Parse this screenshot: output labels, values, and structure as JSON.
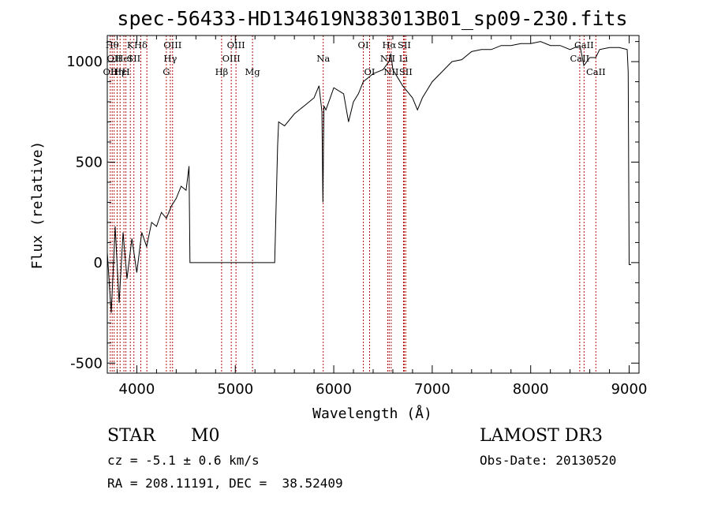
{
  "chart_data": {
    "type": "line",
    "title": "spec-56433-HD134619N383013B01_sp09-230.fits",
    "xlabel": "Wavelength (Å)",
    "ylabel": "Flux (relative)",
    "xlim": [
      3700,
      9100
    ],
    "ylim": [
      -550,
      1130
    ],
    "xticks": [
      4000,
      5000,
      6000,
      7000,
      8000,
      9000
    ],
    "yticks": [
      -500,
      0,
      500,
      1000
    ],
    "grid": false,
    "series": [
      {
        "x": [
          3700,
          3740,
          3780,
          3820,
          3860,
          3900,
          3950,
          4000,
          4050,
          4100,
          4150,
          4200,
          4250,
          4300,
          4350,
          4400,
          4450,
          4500,
          4530,
          4540,
          4600,
          5000,
          5400,
          5430,
          5440,
          5500,
          5600,
          5700,
          5800,
          5850,
          5880,
          5890,
          5900,
          5920,
          5950,
          6000,
          6100,
          6150,
          6200,
          6250,
          6300,
          6400,
          6500,
          6560,
          6580,
          6600,
          6700,
          6800,
          6850,
          6900,
          7000,
          7100,
          7200,
          7300,
          7400,
          7500,
          7600,
          7700,
          7800,
          7900,
          8000,
          8100,
          8200,
          8300,
          8400,
          8500,
          8540,
          8600,
          8660,
          8700,
          8800,
          8900,
          8980,
          8990,
          9000,
          9020
        ],
        "y": [
          50,
          -250,
          180,
          -200,
          150,
          -80,
          120,
          -50,
          150,
          80,
          200,
          180,
          250,
          220,
          280,
          320,
          380,
          360,
          480,
          0,
          0,
          0,
          0,
          580,
          700,
          680,
          740,
          780,
          820,
          880,
          750,
          300,
          780,
          760,
          800,
          870,
          840,
          700,
          800,
          840,
          900,
          940,
          960,
          1000,
          1040,
          960,
          880,
          820,
          760,
          820,
          900,
          950,
          1000,
          1010,
          1050,
          1060,
          1060,
          1080,
          1080,
          1090,
          1090,
          1100,
          1080,
          1080,
          1060,
          1080,
          980,
          1020,
          1020,
          1060,
          1070,
          1070,
          1060,
          950,
          -10,
          -10
        ]
      }
    ],
    "lines": [
      {
        "wl": 3730,
        "label": "OII",
        "row": 3
      },
      {
        "wl": 3750,
        "label": "Hθ",
        "row": 1
      },
      {
        "wl": 3770,
        "label": "OII",
        "row": 2
      },
      {
        "wl": 3800,
        "label": "Hη",
        "row": 3
      },
      {
        "wl": 3830,
        "label": "Hε",
        "row": 3
      },
      {
        "wl": 3869,
        "label": "HeI",
        "row": 2
      },
      {
        "wl": 3889,
        "label": "H",
        "row": 3
      },
      {
        "wl": 3934,
        "label": "K",
        "row": 1
      },
      {
        "wl": 3970,
        "label": "SII",
        "row": 2
      },
      {
        "wl": 4040,
        "label": "Hδ",
        "row": 1
      },
      {
        "wl": 4102,
        "label": "",
        "row": 1
      },
      {
        "wl": 4300,
        "label": "G",
        "row": 3
      },
      {
        "wl": 4340,
        "label": "Hγ",
        "row": 2
      },
      {
        "wl": 4363,
        "label": "OIII",
        "row": 1
      },
      {
        "wl": 4861,
        "label": "Hβ",
        "row": 3
      },
      {
        "wl": 4959,
        "label": "OIII",
        "row": 2
      },
      {
        "wl": 5007,
        "label": "OIII",
        "row": 1
      },
      {
        "wl": 5175,
        "label": "Mg",
        "row": 3
      },
      {
        "wl": 5893,
        "label": "Na",
        "row": 2
      },
      {
        "wl": 6300,
        "label": "OI",
        "row": 1
      },
      {
        "wl": 6364,
        "label": "OI",
        "row": 3
      },
      {
        "wl": 6548,
        "label": "NII",
        "row": 2
      },
      {
        "wl": 6563,
        "label": "Hα",
        "row": 1
      },
      {
        "wl": 6583,
        "label": "NII",
        "row": 3
      },
      {
        "wl": 6708,
        "label": "Li",
        "row": 2
      },
      {
        "wl": 6716,
        "label": "SII",
        "row": 1
      },
      {
        "wl": 6731,
        "label": "SII",
        "row": 3
      },
      {
        "wl": 8498,
        "label": "CaII",
        "row": 2
      },
      {
        "wl": 8542,
        "label": "CaII",
        "row": 1
      },
      {
        "wl": 8662,
        "label": "CaII",
        "row": 3
      }
    ]
  },
  "footer": {
    "class_label": "STAR",
    "subclass": "M0",
    "survey": "LAMOST DR3",
    "cz": "cz = -5.1 ± 0.6 km/s",
    "obs_date": "Obs-Date: 20130520",
    "coords": "RA = 208.11191, DEC =  38.52409"
  }
}
